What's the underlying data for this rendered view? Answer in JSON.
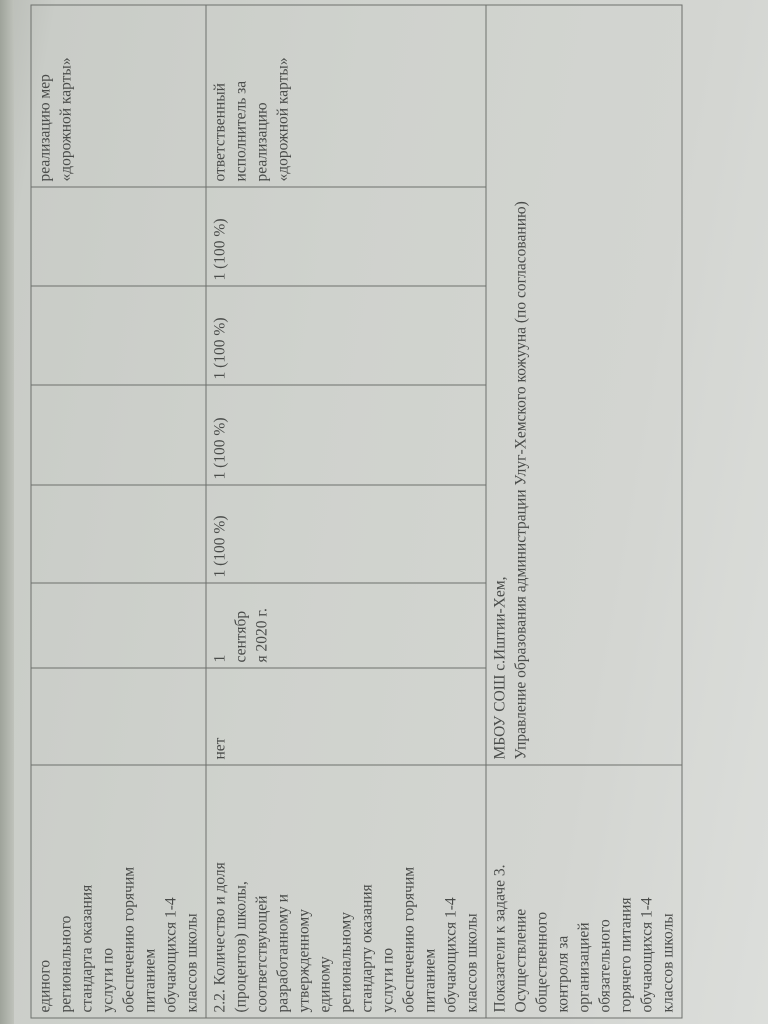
{
  "row_continued": {
    "label_lines": [
      "единого",
      "регионального",
      "стандарта оказания",
      "услуги по",
      "обеспечению горячим",
      "питанием",
      "обучающихся 1-4",
      "классов школы"
    ],
    "last": [
      "реализацию мер",
      "«дорожной карты»"
    ]
  },
  "row_2_2": {
    "label_lines": [
      "2.2. Количество и доля",
      "(процентов) школы,",
      "соответствующей",
      "разработанному и",
      "утвержденному",
      "единому",
      "региональному",
      "стандарту оказания",
      "услуги по",
      "обеспечению горячим",
      "питанием",
      "обучающихся 1-4",
      "классов школы"
    ],
    "base": "нет",
    "date_lines": [
      "1",
      "сентябр",
      "я 2020 г."
    ],
    "values": [
      "1 (100 %)",
      "1 (100 %)",
      "1 (100 %)",
      "1 (100 %)"
    ],
    "responsible_lines": [
      "ответственный",
      "исполнитель за",
      "реализацию",
      "«дорожной карты»"
    ]
  },
  "row_task3": {
    "label_lines": [
      "Показатели к задаче 3.",
      "Осуществление",
      "общественного",
      "контроля  за",
      "организацией",
      "обязательного",
      "горячего питания",
      "обучающихся 1-4",
      "классов школы"
    ],
    "executors": [
      "МБОУ СОШ с.Иштии-Хем,",
      "Управление образования администрации Улуг-Хемского кожууна (по согласованию)"
    ]
  }
}
